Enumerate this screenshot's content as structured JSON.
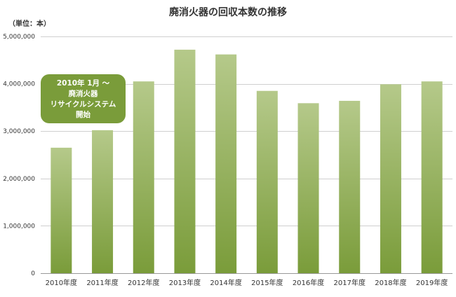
{
  "chart_data": {
    "type": "bar",
    "title": "廃消火器の回収本数の推移",
    "unit_label": "（単位：本）",
    "categories": [
      "2010年度",
      "2011年度",
      "2012年度",
      "2013年度",
      "2014年度",
      "2015年度",
      "2016年度",
      "2017年度",
      "2018年度",
      "2019年度"
    ],
    "values": [
      2650000,
      3020000,
      4050000,
      4720000,
      4620000,
      3850000,
      3590000,
      3640000,
      3990000,
      4050000
    ],
    "ylim": [
      0,
      5000000
    ],
    "yticks": [
      0,
      1000000,
      2000000,
      3000000,
      4000000,
      5000000
    ],
    "ytick_labels": [
      "0",
      "1,000,000",
      "2,000,000",
      "3,000,000",
      "4,000,000",
      "5,000,000"
    ],
    "grid": true,
    "bar_color_top": "#b5c98a",
    "bar_color_bottom": "#7a9c3a",
    "annotation": {
      "lines": [
        "2010年 1月 ～",
        "廃消火器",
        "リサイクルシステム",
        "開始"
      ],
      "color": "#7a9c3a"
    }
  }
}
